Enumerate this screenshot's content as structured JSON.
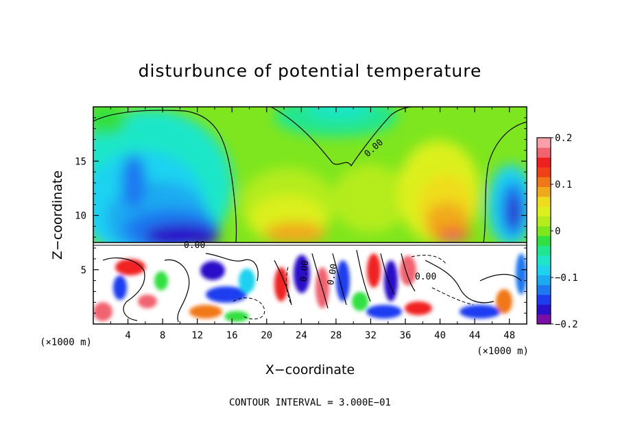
{
  "chart_data": {
    "type": "heatmap",
    "title": "disturbunce of potential temperature",
    "xlabel": "X−coordinate",
    "ylabel": "Z−coordinate",
    "x_unit_left": "(×1000 m)",
    "x_unit_right": "(×1000 m)",
    "xlim": [
      0,
      50
    ],
    "ylim": [
      0,
      20
    ],
    "x_ticks": [
      4,
      8,
      12,
      16,
      20,
      24,
      28,
      32,
      36,
      40,
      44,
      48
    ],
    "x_tick_labels": [
      "4",
      "8",
      "12",
      "16",
      "20",
      "24",
      "28",
      "32",
      "36",
      "40",
      "44",
      "48"
    ],
    "y_ticks": [
      5,
      10,
      15
    ],
    "y_tick_labels": [
      "5",
      "10",
      "15"
    ],
    "colorbar": {
      "range": [
        -0.2,
        0.2
      ],
      "ticks": [
        0.2,
        0.1,
        0,
        -0.1,
        -0.2
      ],
      "tick_labels": [
        "0.2",
        "0.1",
        "0",
        "−0.1",
        "−0.2"
      ],
      "colors": [
        "#7a0fa8",
        "#2a10c8",
        "#1e3cf0",
        "#1e78f0",
        "#1eaaf0",
        "#1ed2f0",
        "#1ee6c8",
        "#20e690",
        "#30e040",
        "#7ee61e",
        "#b4ec1e",
        "#dcf01e",
        "#f0dc1e",
        "#f0aa1e",
        "#f07818",
        "#f04018",
        "#f02020",
        "#f06470",
        "#f8a0a8"
      ]
    },
    "contour_labels": [
      "0.00",
      "0.00",
      "0.00",
      "0.00",
      "0.00"
    ],
    "contour_interval_text": "CONTOUR INTERVAL = 3.000E−01"
  }
}
